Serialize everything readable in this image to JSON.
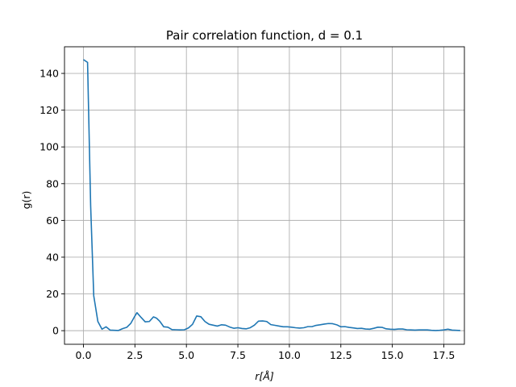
{
  "chart_data": {
    "type": "line",
    "title": "Pair correlation function, d = 0.1",
    "xlabel": "r[Å]",
    "ylabel": "g(r)",
    "xlim": [
      -0.92,
      18.5
    ],
    "ylim": [
      -7.4,
      154.5
    ],
    "grid": true,
    "xticks": [
      0.0,
      2.5,
      5.0,
      7.5,
      10.0,
      12.5,
      15.0,
      17.5
    ],
    "xtick_labels": [
      "0.0",
      "2.5",
      "5.0",
      "7.5",
      "10.0",
      "12.5",
      "15.0",
      "17.5"
    ],
    "yticks": [
      0,
      20,
      40,
      60,
      80,
      100,
      120,
      140
    ],
    "ytick_labels": [
      "0",
      "20",
      "40",
      "60",
      "80",
      "100",
      "120",
      "140"
    ],
    "series": [
      {
        "color": "#1f77b4",
        "x": [
          0.0,
          0.2,
          0.35,
          0.5,
          0.7,
          0.9,
          1.1,
          1.3,
          1.5,
          1.7,
          1.9,
          2.1,
          2.3,
          2.5,
          2.6,
          2.8,
          3.0,
          3.2,
          3.4,
          3.55,
          3.7,
          3.9,
          4.1,
          4.3,
          4.5,
          4.7,
          4.9,
          5.1,
          5.3,
          5.5,
          5.7,
          5.9,
          6.1,
          6.3,
          6.5,
          6.7,
          6.9,
          7.1,
          7.3,
          7.5,
          7.7,
          7.9,
          8.1,
          8.3,
          8.5,
          8.7,
          8.9,
          9.1,
          9.3,
          9.5,
          9.7,
          9.9,
          10.1,
          10.3,
          10.5,
          10.7,
          10.9,
          11.1,
          11.3,
          11.5,
          11.7,
          11.9,
          12.1,
          12.3,
          12.5,
          12.7,
          12.9,
          13.1,
          13.3,
          13.5,
          13.7,
          13.9,
          14.1,
          14.3,
          14.5,
          14.7,
          14.9,
          15.1,
          15.3,
          15.5,
          15.7,
          15.9,
          16.1,
          16.3,
          16.5,
          16.7,
          16.9,
          17.1,
          17.3,
          17.5,
          17.7,
          17.9,
          18.1,
          18.3
        ],
        "y": [
          147.5,
          146,
          68,
          19,
          5,
          0.8,
          2.1,
          0.3,
          0.2,
          0.1,
          1.1,
          1.8,
          4,
          8,
          9.8,
          7.2,
          4.8,
          5,
          7.5,
          6.8,
          5.2,
          2.1,
          1.9,
          0.6,
          0.5,
          0.4,
          0.5,
          1.5,
          3.5,
          8,
          7.6,
          5,
          3.5,
          3,
          2.5,
          3.2,
          3,
          2,
          1.3,
          1.6,
          1.2,
          1,
          1.6,
          3,
          5.2,
          5.3,
          5,
          3.3,
          2.9,
          2.5,
          2.1,
          2.1,
          1.9,
          1.6,
          1.4,
          1.6,
          2.2,
          2.2,
          2.9,
          3.2,
          3.6,
          3.9,
          3.8,
          3.2,
          2.1,
          2.2,
          1.8,
          1.5,
          1.2,
          1.3,
          0.9,
          0.8,
          1.3,
          1.9,
          1.8,
          1,
          0.8,
          0.7,
          0.9,
          0.9,
          0.5,
          0.4,
          0.3,
          0.4,
          0.4,
          0.4,
          0.2,
          0.1,
          0.2,
          0.4,
          0.8,
          0.3,
          0.2,
          0.1
        ]
      }
    ]
  }
}
